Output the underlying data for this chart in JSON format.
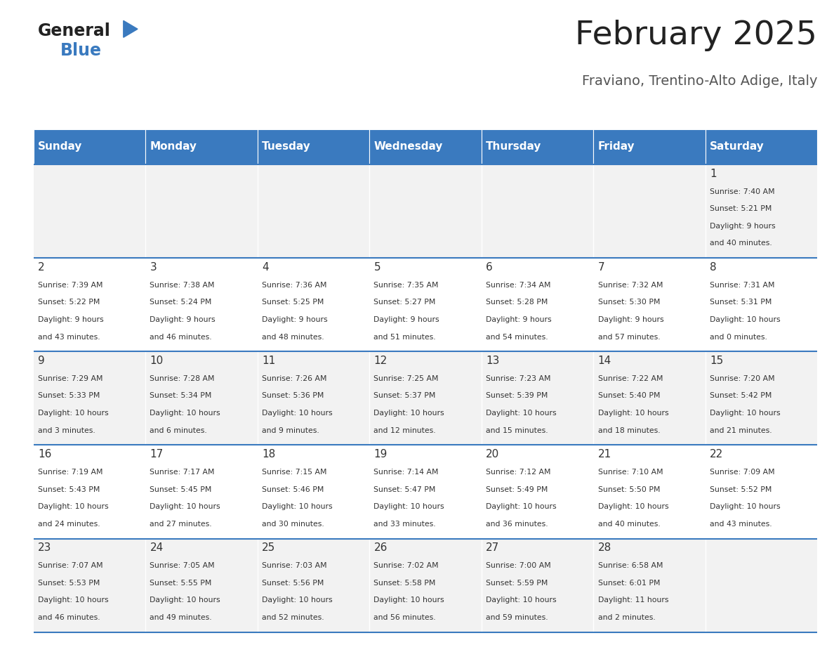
{
  "title": "February 2025",
  "subtitle": "Fraviano, Trentino-Alto Adige, Italy",
  "days_of_week": [
    "Sunday",
    "Monday",
    "Tuesday",
    "Wednesday",
    "Thursday",
    "Friday",
    "Saturday"
  ],
  "header_bg": "#3a7abf",
  "header_text_color": "#ffffff",
  "cell_bg_odd": "#f2f2f2",
  "cell_bg_even": "#ffffff",
  "separator_color": "#3a7abf",
  "text_color": "#333333",
  "title_color": "#222222",
  "subtitle_color": "#555555",
  "calendar": [
    [
      null,
      null,
      null,
      null,
      null,
      null,
      {
        "day": 1,
        "sunrise": "7:40 AM",
        "sunset": "5:21 PM",
        "daylight_line1": "Daylight: 9 hours",
        "daylight_line2": "and 40 minutes."
      }
    ],
    [
      {
        "day": 2,
        "sunrise": "7:39 AM",
        "sunset": "5:22 PM",
        "daylight_line1": "Daylight: 9 hours",
        "daylight_line2": "and 43 minutes."
      },
      {
        "day": 3,
        "sunrise": "7:38 AM",
        "sunset": "5:24 PM",
        "daylight_line1": "Daylight: 9 hours",
        "daylight_line2": "and 46 minutes."
      },
      {
        "day": 4,
        "sunrise": "7:36 AM",
        "sunset": "5:25 PM",
        "daylight_line1": "Daylight: 9 hours",
        "daylight_line2": "and 48 minutes."
      },
      {
        "day": 5,
        "sunrise": "7:35 AM",
        "sunset": "5:27 PM",
        "daylight_line1": "Daylight: 9 hours",
        "daylight_line2": "and 51 minutes."
      },
      {
        "day": 6,
        "sunrise": "7:34 AM",
        "sunset": "5:28 PM",
        "daylight_line1": "Daylight: 9 hours",
        "daylight_line2": "and 54 minutes."
      },
      {
        "day": 7,
        "sunrise": "7:32 AM",
        "sunset": "5:30 PM",
        "daylight_line1": "Daylight: 9 hours",
        "daylight_line2": "and 57 minutes."
      },
      {
        "day": 8,
        "sunrise": "7:31 AM",
        "sunset": "5:31 PM",
        "daylight_line1": "Daylight: 10 hours",
        "daylight_line2": "and 0 minutes."
      }
    ],
    [
      {
        "day": 9,
        "sunrise": "7:29 AM",
        "sunset": "5:33 PM",
        "daylight_line1": "Daylight: 10 hours",
        "daylight_line2": "and 3 minutes."
      },
      {
        "day": 10,
        "sunrise": "7:28 AM",
        "sunset": "5:34 PM",
        "daylight_line1": "Daylight: 10 hours",
        "daylight_line2": "and 6 minutes."
      },
      {
        "day": 11,
        "sunrise": "7:26 AM",
        "sunset": "5:36 PM",
        "daylight_line1": "Daylight: 10 hours",
        "daylight_line2": "and 9 minutes."
      },
      {
        "day": 12,
        "sunrise": "7:25 AM",
        "sunset": "5:37 PM",
        "daylight_line1": "Daylight: 10 hours",
        "daylight_line2": "and 12 minutes."
      },
      {
        "day": 13,
        "sunrise": "7:23 AM",
        "sunset": "5:39 PM",
        "daylight_line1": "Daylight: 10 hours",
        "daylight_line2": "and 15 minutes."
      },
      {
        "day": 14,
        "sunrise": "7:22 AM",
        "sunset": "5:40 PM",
        "daylight_line1": "Daylight: 10 hours",
        "daylight_line2": "and 18 minutes."
      },
      {
        "day": 15,
        "sunrise": "7:20 AM",
        "sunset": "5:42 PM",
        "daylight_line1": "Daylight: 10 hours",
        "daylight_line2": "and 21 minutes."
      }
    ],
    [
      {
        "day": 16,
        "sunrise": "7:19 AM",
        "sunset": "5:43 PM",
        "daylight_line1": "Daylight: 10 hours",
        "daylight_line2": "and 24 minutes."
      },
      {
        "day": 17,
        "sunrise": "7:17 AM",
        "sunset": "5:45 PM",
        "daylight_line1": "Daylight: 10 hours",
        "daylight_line2": "and 27 minutes."
      },
      {
        "day": 18,
        "sunrise": "7:15 AM",
        "sunset": "5:46 PM",
        "daylight_line1": "Daylight: 10 hours",
        "daylight_line2": "and 30 minutes."
      },
      {
        "day": 19,
        "sunrise": "7:14 AM",
        "sunset": "5:47 PM",
        "daylight_line1": "Daylight: 10 hours",
        "daylight_line2": "and 33 minutes."
      },
      {
        "day": 20,
        "sunrise": "7:12 AM",
        "sunset": "5:49 PM",
        "daylight_line1": "Daylight: 10 hours",
        "daylight_line2": "and 36 minutes."
      },
      {
        "day": 21,
        "sunrise": "7:10 AM",
        "sunset": "5:50 PM",
        "daylight_line1": "Daylight: 10 hours",
        "daylight_line2": "and 40 minutes."
      },
      {
        "day": 22,
        "sunrise": "7:09 AM",
        "sunset": "5:52 PM",
        "daylight_line1": "Daylight: 10 hours",
        "daylight_line2": "and 43 minutes."
      }
    ],
    [
      {
        "day": 23,
        "sunrise": "7:07 AM",
        "sunset": "5:53 PM",
        "daylight_line1": "Daylight: 10 hours",
        "daylight_line2": "and 46 minutes."
      },
      {
        "day": 24,
        "sunrise": "7:05 AM",
        "sunset": "5:55 PM",
        "daylight_line1": "Daylight: 10 hours",
        "daylight_line2": "and 49 minutes."
      },
      {
        "day": 25,
        "sunrise": "7:03 AM",
        "sunset": "5:56 PM",
        "daylight_line1": "Daylight: 10 hours",
        "daylight_line2": "and 52 minutes."
      },
      {
        "day": 26,
        "sunrise": "7:02 AM",
        "sunset": "5:58 PM",
        "daylight_line1": "Daylight: 10 hours",
        "daylight_line2": "and 56 minutes."
      },
      {
        "day": 27,
        "sunrise": "7:00 AM",
        "sunset": "5:59 PM",
        "daylight_line1": "Daylight: 10 hours",
        "daylight_line2": "and 59 minutes."
      },
      {
        "day": 28,
        "sunrise": "6:58 AM",
        "sunset": "6:01 PM",
        "daylight_line1": "Daylight: 11 hours",
        "daylight_line2": "and 2 minutes."
      },
      null
    ]
  ]
}
